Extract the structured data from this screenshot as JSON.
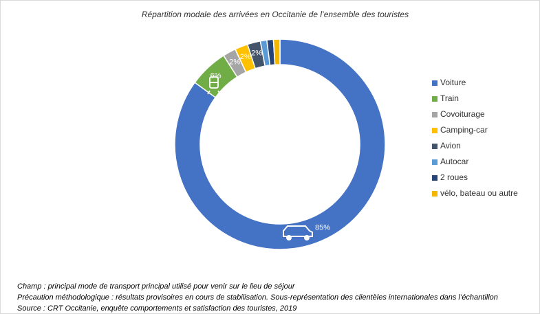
{
  "chart_data": {
    "type": "donut",
    "title": "Répartition modale des arrivées en Occitanie de l’ensemble des touristes",
    "categories": [
      "Voiture",
      "Train",
      "Covoiturage",
      "Camping-car",
      "Avion",
      "Autocar",
      "2 roues",
      "vélo, bateau ou autre"
    ],
    "values": [
      85,
      6,
      2,
      2,
      2,
      1,
      1,
      1
    ],
    "value_labels": [
      "85%",
      "6%",
      "2%",
      "2%",
      "2%",
      null,
      null,
      null
    ],
    "colors": [
      "#4472c4",
      "#70ad47",
      "#a5a5a5",
      "#ffc000",
      "#44546a",
      "#5b9bd5",
      "#264478",
      "#f5b800"
    ],
    "legend": "right",
    "notes": [
      "Champ : principal mode de transport principal utilisé pour venir sur le lieu de séjour",
      "Précaution méthodologique : résultats provisoires en cours de stabilisation. Sous-représentation des clientèles internationales dans l’échantillon",
      "Source : CRT Occitanie, enquête comportements et satisfaction des touristes, 2019"
    ]
  }
}
